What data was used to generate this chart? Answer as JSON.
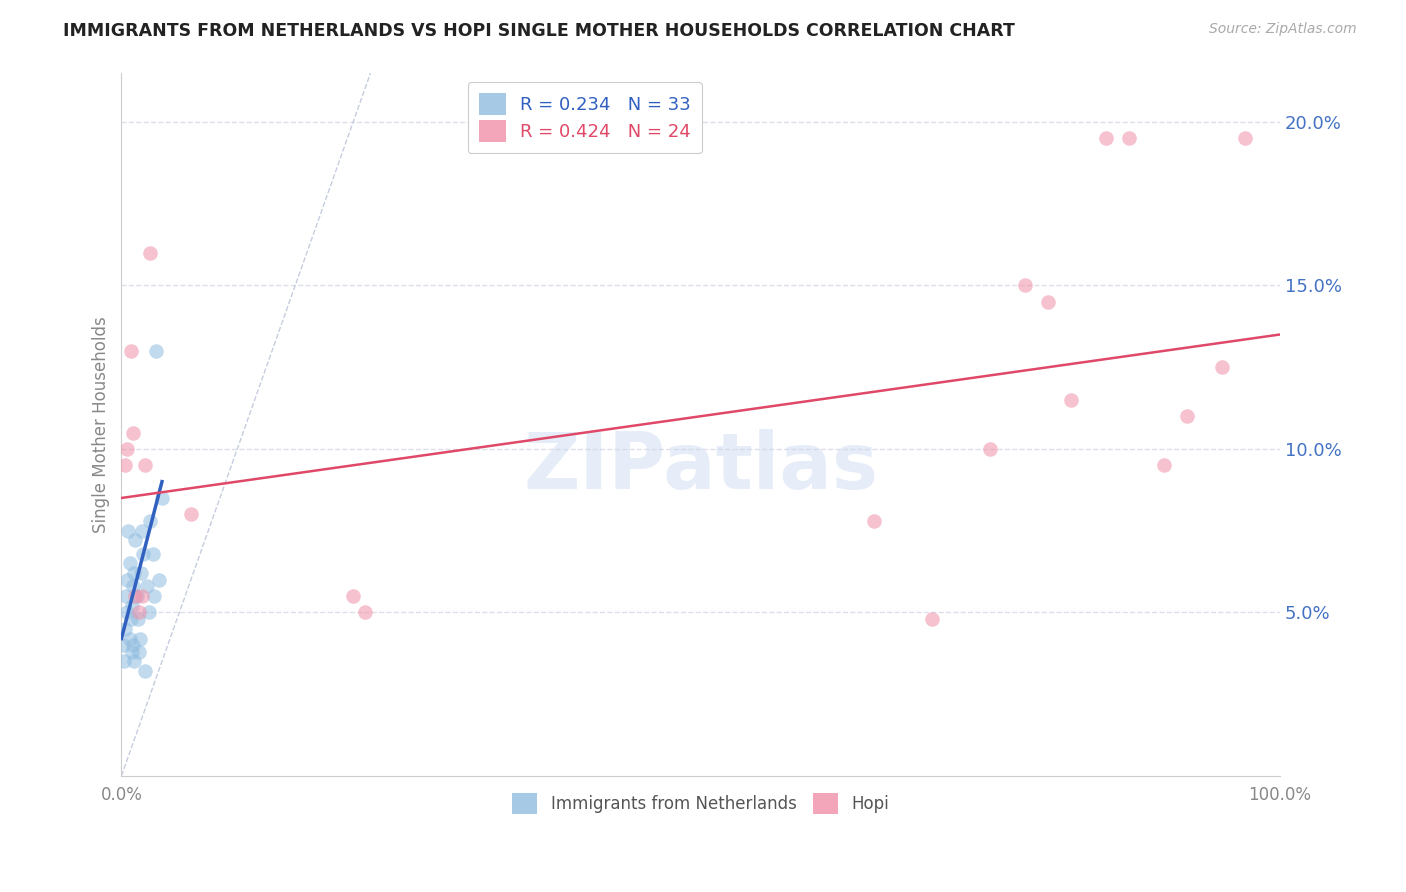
{
  "title": "IMMIGRANTS FROM NETHERLANDS VS HOPI SINGLE MOTHER HOUSEHOLDS CORRELATION CHART",
  "source": "Source: ZipAtlas.com",
  "ylabel": "Single Mother Households",
  "xlim": [
    0,
    100
  ],
  "ylim": [
    0,
    0.215
  ],
  "yticks": [
    0.05,
    0.1,
    0.15,
    0.2
  ],
  "xticks": [
    0,
    20,
    40,
    60,
    80,
    100
  ],
  "legend_entries": [
    {
      "label": "Immigrants from Netherlands",
      "R": "0.234",
      "N": "33",
      "color": "#a8c8e8"
    },
    {
      "label": "Hopi",
      "R": "0.424",
      "N": "24",
      "color": "#f4a0b4"
    }
  ],
  "blue_scatter_x": [
    0.1,
    0.2,
    0.3,
    0.4,
    0.5,
    0.5,
    0.6,
    0.7,
    0.7,
    0.8,
    0.9,
    0.9,
    1.0,
    1.0,
    1.1,
    1.1,
    1.2,
    1.3,
    1.4,
    1.5,
    1.6,
    1.7,
    1.8,
    1.9,
    2.0,
    2.2,
    2.4,
    2.5,
    2.7,
    2.8,
    3.0,
    3.2,
    3.5
  ],
  "blue_scatter_y": [
    0.04,
    0.035,
    0.045,
    0.055,
    0.06,
    0.05,
    0.075,
    0.065,
    0.042,
    0.048,
    0.038,
    0.052,
    0.04,
    0.058,
    0.035,
    0.062,
    0.072,
    0.055,
    0.048,
    0.038,
    0.042,
    0.062,
    0.075,
    0.068,
    0.032,
    0.058,
    0.05,
    0.078,
    0.068,
    0.055,
    0.13,
    0.06,
    0.085
  ],
  "pink_scatter_x": [
    0.3,
    0.5,
    0.8,
    1.0,
    1.2,
    1.5,
    1.8,
    2.0,
    2.5,
    6.0,
    20.0,
    21.0,
    65.0,
    70.0,
    75.0,
    78.0,
    80.0,
    82.0,
    85.0,
    87.0,
    90.0,
    92.0,
    95.0,
    97.0
  ],
  "pink_scatter_y": [
    0.095,
    0.1,
    0.13,
    0.105,
    0.055,
    0.05,
    0.055,
    0.095,
    0.16,
    0.08,
    0.055,
    0.05,
    0.078,
    0.048,
    0.1,
    0.15,
    0.145,
    0.115,
    0.195,
    0.195,
    0.095,
    0.11,
    0.125,
    0.195
  ],
  "blue_trend_x": [
    0.0,
    3.5
  ],
  "blue_trend_y": [
    0.042,
    0.09
  ],
  "pink_trend_x": [
    0.0,
    100.0
  ],
  "pink_trend_y": [
    0.085,
    0.135
  ],
  "diag_line_x": [
    0.0,
    21.5
  ],
  "diag_line_y": [
    0.0,
    0.215
  ],
  "scatter_size": 110,
  "background_color": "#ffffff",
  "grid_color": "#dde0ea",
  "blue_color": "#90bce0",
  "pink_color": "#f090a8",
  "blue_trend_color": "#3060c0",
  "pink_trend_color": "#e04868",
  "diag_color": "#b8c0d8",
  "tick_label_color_y": "#4472c4",
  "tick_label_color_x": "#888888",
  "axis_label_color": "#888888"
}
